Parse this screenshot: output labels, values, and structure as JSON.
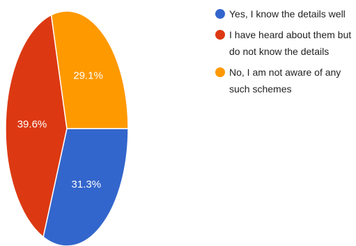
{
  "chart_data": {
    "type": "pie",
    "start_angle_deg": 90,
    "direction": "clockwise",
    "slices": [
      {
        "label": "Yes, I know the details well",
        "value": 31.3,
        "value_label": "31.3%",
        "color": "#3366cc"
      },
      {
        "label": "I have heard about them but do not know the details",
        "value": 39.6,
        "value_label": "39.6%",
        "color": "#dc3912"
      },
      {
        "label": "No, I am not aware of any such schemes",
        "value": 29.1,
        "value_label": "29.1%",
        "color": "#ff9900"
      }
    ],
    "legend_position": "right"
  }
}
